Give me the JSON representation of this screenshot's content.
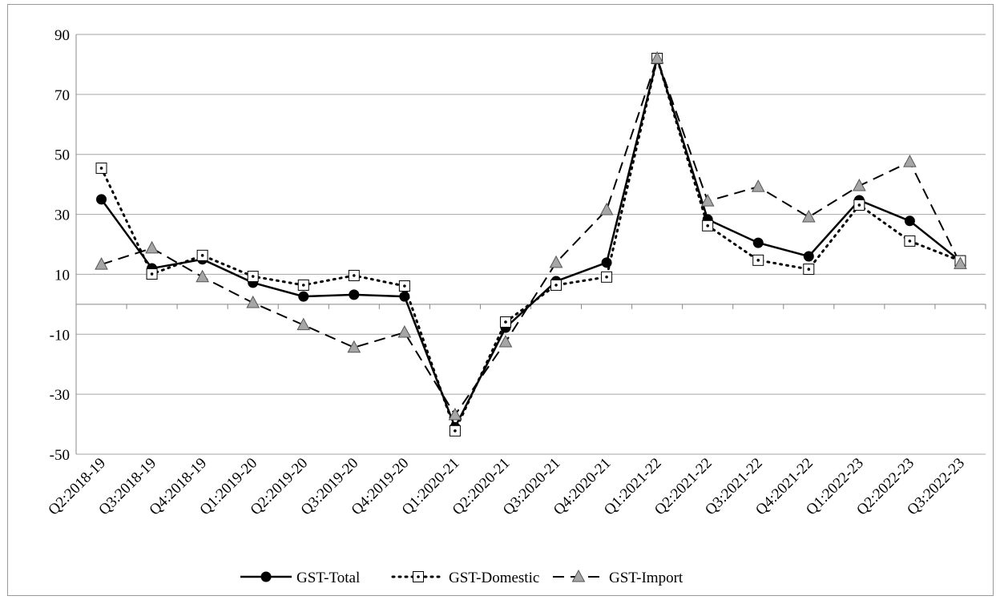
{
  "chart_data": {
    "type": "line",
    "categories": [
      "Q2:2018-19",
      "Q3:2018-19",
      "Q4:2018-19",
      "Q1:2019-20",
      "Q2:2019-20",
      "Q3:2019-20",
      "Q4:2019-20",
      "Q1:2020-21",
      "Q2:2020-21",
      "Q3:2020-21",
      "Q4:2020-21",
      "Q1:2021-22",
      "Q2:2021-22",
      "Q3:2021-22",
      "Q4:2021-22",
      "Q1:2022-23",
      "Q2:2022-23",
      "Q3:2022-23"
    ],
    "series": [
      {
        "name": "GST-Total",
        "color": "#000000",
        "dash": "solid",
        "marker": "circle",
        "values": [
          35,
          12,
          15,
          7.2,
          2.6,
          3.2,
          2.6,
          -41,
          -7.8,
          7.7,
          13.9,
          82,
          28.3,
          20.5,
          16,
          34.7,
          27.8,
          14.4
        ]
      },
      {
        "name": "GST-Domestic",
        "color": "#000000",
        "dash": "dotted",
        "marker": "square",
        "values": [
          45.4,
          10.1,
          16.3,
          9.3,
          6.4,
          9.6,
          6.1,
          -42.2,
          -5.9,
          6.4,
          9.1,
          82,
          26.2,
          14.7,
          11.7,
          33.1,
          21.1,
          14.5
        ]
      },
      {
        "name": "GST-Import",
        "color": "#000000",
        "dash": "dashed",
        "marker": "triangle",
        "values": [
          13.3,
          18.7,
          9.1,
          0.5,
          -6.9,
          -14.4,
          -9.4,
          -36.9,
          -12.6,
          13.9,
          31.5,
          82,
          34.4,
          39.2,
          29.1,
          39.5,
          47.5,
          13.5
        ]
      }
    ],
    "ylim": [
      -50,
      90
    ],
    "yticks": [
      -50,
      -30,
      -10,
      10,
      30,
      50,
      70,
      90
    ],
    "grid": true,
    "legend": "bottom"
  }
}
